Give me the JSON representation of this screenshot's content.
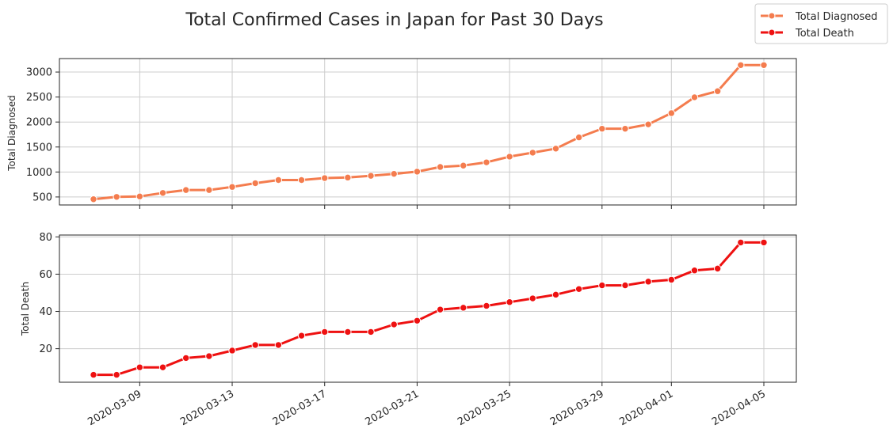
{
  "chart_data": {
    "type": "line",
    "title": "Total Confirmed Cases in Japan for Past 30 Days",
    "legend": {
      "placement": "top-right",
      "entries": [
        {
          "label": "Total Diagnosed",
          "color": "#f47c4e"
        },
        {
          "label": "Total Death",
          "color": "#ee1111"
        }
      ]
    },
    "x": [
      "2020-03-07",
      "2020-03-08",
      "2020-03-09",
      "2020-03-10",
      "2020-03-11",
      "2020-03-12",
      "2020-03-13",
      "2020-03-14",
      "2020-03-15",
      "2020-03-16",
      "2020-03-17",
      "2020-03-18",
      "2020-03-19",
      "2020-03-20",
      "2020-03-21",
      "2020-03-22",
      "2020-03-23",
      "2020-03-24",
      "2020-03-25",
      "2020-03-26",
      "2020-03-27",
      "2020-03-28",
      "2020-03-29",
      "2020-03-30",
      "2020-03-31",
      "2020-04-01",
      "2020-04-02",
      "2020-04-03",
      "2020-04-04",
      "2020-04-05"
    ],
    "xticks": [
      "2020-03-09",
      "2020-03-13",
      "2020-03-17",
      "2020-03-21",
      "2020-03-25",
      "2020-03-29",
      "2020-04-01",
      "2020-04-05"
    ],
    "panels": [
      {
        "ylabel": "Total Diagnosed",
        "ylim": [
          340,
          3270
        ],
        "yticks": [
          500,
          1000,
          1500,
          2000,
          2500,
          3000
        ],
        "grid": true,
        "series": [
          {
            "name": "Total Diagnosed",
            "color": "#f47c4e",
            "values": [
              455,
              502,
              511,
              581,
              639,
              639,
              701,
              775,
              839,
              839,
              878,
              889,
              924,
              963,
              1007,
              1101,
              1128,
              1193,
              1307,
              1387,
              1468,
              1693,
              1866,
              1866,
              1953,
              2178,
              2495,
              2617,
              3139,
              3139
            ]
          }
        ]
      },
      {
        "ylabel": "Total Death",
        "ylim": [
          2,
          81
        ],
        "yticks": [
          20,
          40,
          60,
          80
        ],
        "grid": true,
        "series": [
          {
            "name": "Total Death",
            "color": "#ee1111",
            "values": [
              6,
              6,
              10,
              10,
              15,
              16,
              19,
              22,
              22,
              27,
              29,
              29,
              29,
              33,
              35,
              41,
              42,
              43,
              45,
              47,
              49,
              52,
              54,
              54,
              56,
              57,
              62,
              63,
              77,
              77
            ]
          }
        ]
      }
    ]
  }
}
